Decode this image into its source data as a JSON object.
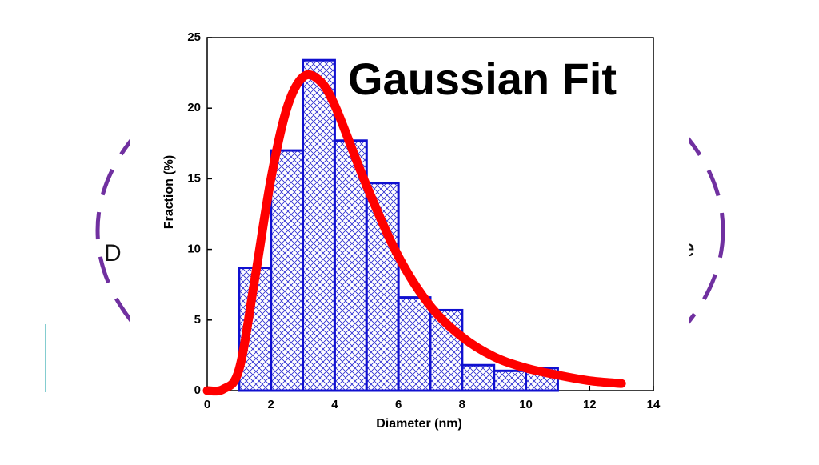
{
  "background_text": [
    "D",
    "e"
  ],
  "chart_data": {
    "type": "histogram",
    "annotation": "Gaussian Fit",
    "x_label": "Diameter (nm)",
    "y_label": "Fraction (%)",
    "bins": [
      1,
      2,
      3,
      4,
      5,
      6,
      7,
      8,
      9,
      10,
      11
    ],
    "values": [
      8.7,
      17.0,
      23.4,
      17.7,
      14.7,
      6.6,
      5.7,
      1.8,
      1.4,
      1.6
    ],
    "color": "#1010d0",
    "fit": {
      "color": "#ff0000",
      "x": [
        0,
        0.5,
        1,
        1.5,
        2,
        2.5,
        3,
        3.5,
        4,
        5,
        6,
        7,
        8,
        9,
        10,
        11,
        12,
        13
      ],
      "values": [
        0,
        0.1,
        1.5,
        8,
        15,
        20,
        22.2,
        22,
        20.2,
        14.5,
        9.5,
        6,
        3.8,
        2.4,
        1.6,
        1.1,
        0.7,
        0.5
      ]
    },
    "xlim": [
      0,
      14
    ],
    "xticks": [
      0,
      2,
      4,
      6,
      8,
      10,
      12,
      14
    ],
    "ylim": [
      0,
      25
    ],
    "yticks": [
      0,
      5,
      10,
      15,
      20,
      25
    ],
    "grid": false
  }
}
